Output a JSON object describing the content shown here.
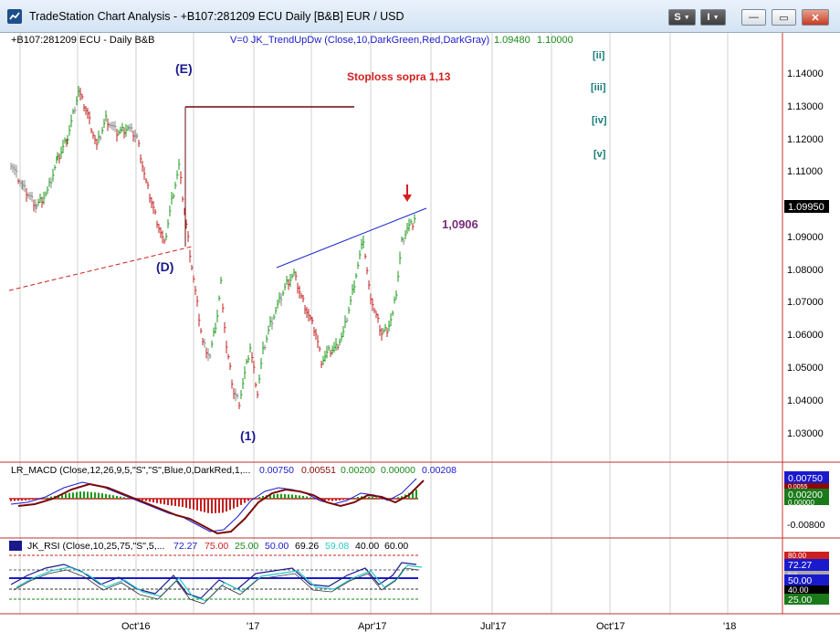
{
  "window": {
    "title": "TradeStation Chart Analysis - +B107:281209 ECU Daily [B&B] EUR / USD",
    "buttons": {
      "s": "S",
      "i": "I",
      "minimize": "—",
      "maximize": "▭",
      "close": "✕"
    }
  },
  "price_panel": {
    "symbol_label": "+B107:281209 ECU - Daily  B&B",
    "indicator_label": "V=0  JK_TrendUpDw (Close,10,DarkGreen,Red,DarkGray)",
    "indicator_value_1": "1.09480",
    "indicator_value_2": "1.10000",
    "y_ticks": [
      "1.14000",
      "1.13000",
      "1.12000",
      "1.11000",
      "1.10000",
      "1.09000",
      "1.08000",
      "1.07000",
      "1.06000",
      "1.05000",
      "1.04000",
      "1.03000"
    ],
    "last_price": "1.09950",
    "annotations": {
      "wave_e": "(E)",
      "wave_d": "(D)",
      "wave_1": "(1)",
      "stoploss": "Stoploss sopra 1,13",
      "level": "1,0906",
      "wave_ii": "[ii]",
      "wave_iii": "[iii]",
      "wave_iv": "[iv]",
      "wave_v": "[v]"
    }
  },
  "macd_panel": {
    "label": "LR_MACD (Close,12,26,9,5,\"S\",\"S\",Blue,0,DarkRed,1,...",
    "values": [
      "0.00750",
      "0.00551",
      "0.00200",
      "0.00000",
      "0.00208"
    ],
    "axis_boxes": [
      "0.00750",
      "0.0055",
      "0.00200",
      "0.00000"
    ],
    "y_tick": "-0.00800"
  },
  "rsi_panel": {
    "label": "JK_RSI (Close,10,25,75,\"S\",5,...",
    "values": [
      "72.27",
      "75.00",
      "25.00",
      "50.00",
      "69.26",
      "59.08",
      "40.00",
      "60.00"
    ],
    "axis_boxes": [
      "80.00",
      "72.27",
      "60.00",
      "50.00",
      "40.00",
      "25.00"
    ]
  },
  "x_axis": {
    "labels": [
      "Oct'16",
      "'17",
      "Apr'17",
      "Jul'17",
      "Oct'17",
      "'18"
    ]
  },
  "colors": {
    "up_bar": "#1a9a1a",
    "down_bar": "#c21f1f",
    "neutral_bar": "#8a8a8a",
    "wave_label": "#1a1a8c",
    "stoploss": "#d42020",
    "level": "#7a2a7a",
    "roman_label": "#1a7a7a",
    "trendline": "#1a2acc",
    "support": "#cc2020",
    "stop_line": "#6a0a0a"
  }
}
